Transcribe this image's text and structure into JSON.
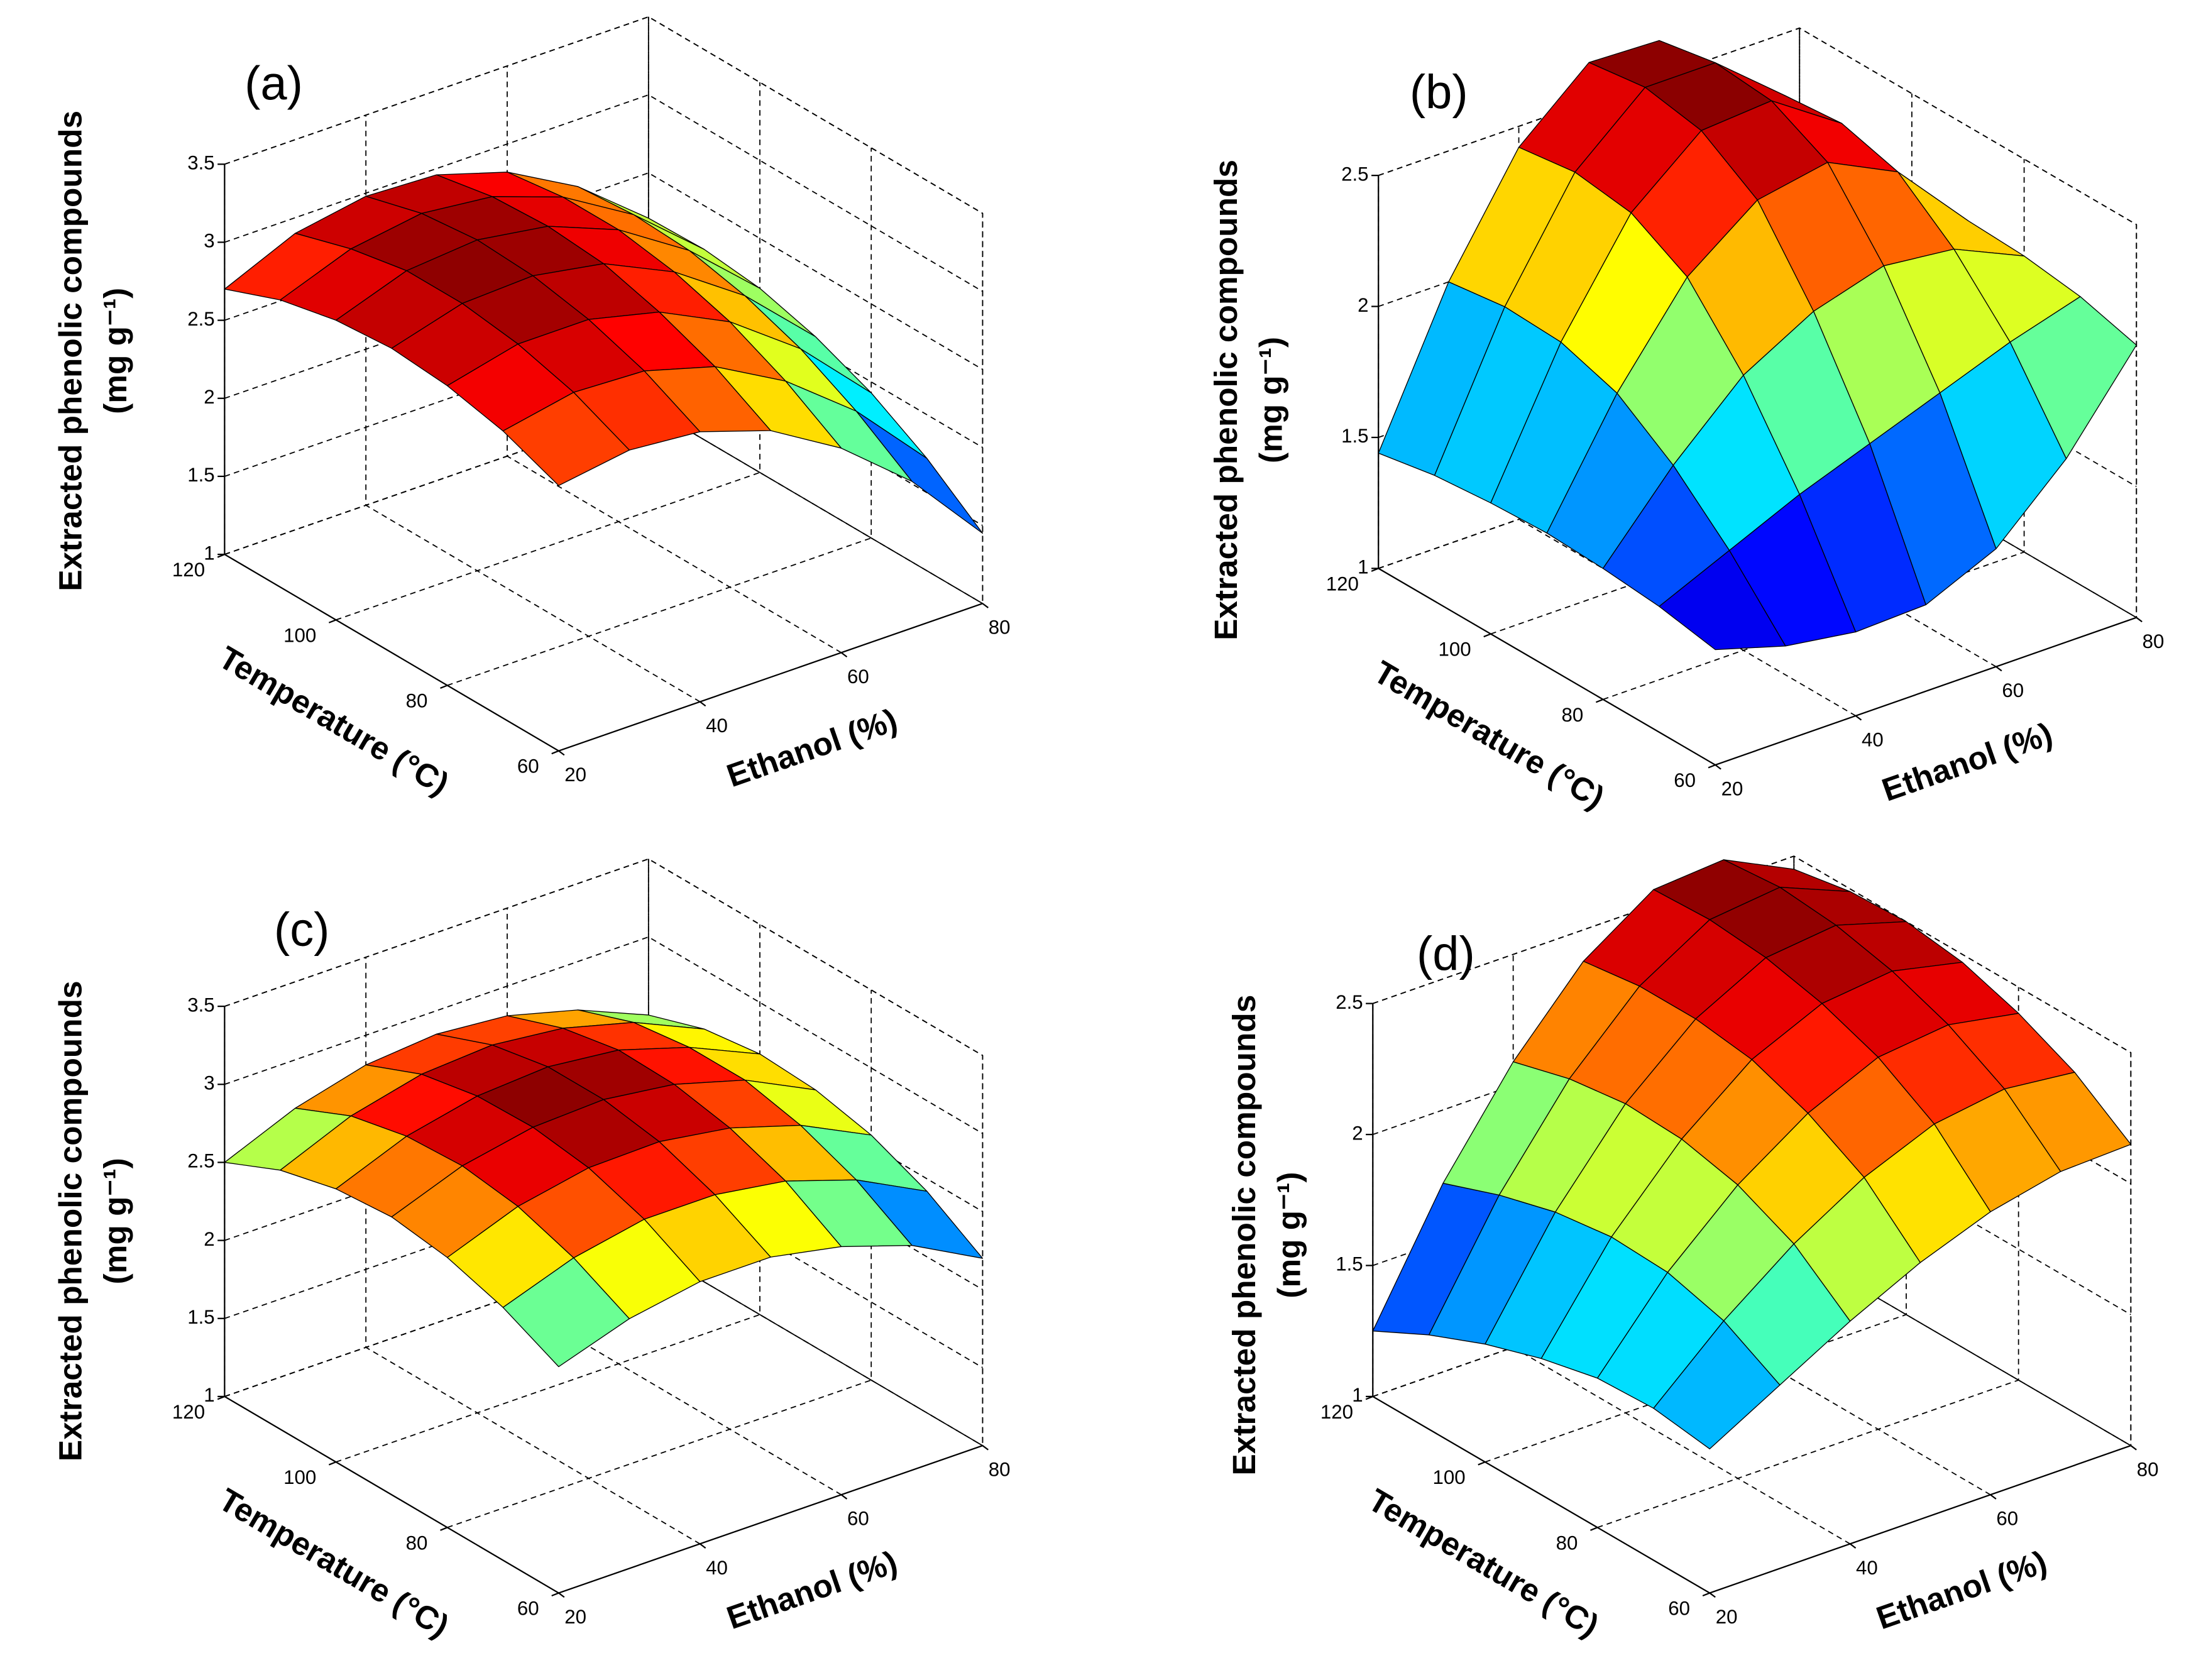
{
  "chart_data": [
    {
      "type": "surface",
      "title": "(a)",
      "x_label": "Ethanol (%)",
      "y_label": "Temperature (°C)",
      "z_label": "Extracted phenolic compounds",
      "z_label_unit": "(mg g⁻¹)",
      "x": [
        20,
        30,
        40,
        50,
        60,
        70,
        80
      ],
      "y": [
        60,
        70,
        80,
        90,
        100,
        110,
        120
      ],
      "z": [
        [
          2.7,
          2.77,
          2.73,
          2.58,
          2.31,
          1.94,
          1.45
        ],
        [
          2.84,
          2.93,
          2.91,
          2.78,
          2.53,
          2.18,
          1.72
        ],
        [
          2.92,
          3.03,
          3.03,
          2.92,
          2.7,
          2.37,
          1.93
        ],
        [
          2.95,
          3.08,
          3.1,
          3.02,
          2.81,
          2.5,
          2.08
        ],
        [
          2.92,
          3.08,
          3.12,
          3.05,
          2.87,
          2.58,
          2.18
        ],
        [
          2.84,
          3.01,
          3.08,
          3.03,
          2.87,
          2.6,
          2.22
        ],
        [
          2.7,
          2.9,
          2.98,
          2.96,
          2.82,
          2.57,
          2.21
        ]
      ],
      "xlim": [
        20,
        80
      ],
      "xticks": [
        20,
        40,
        60,
        80
      ],
      "ylim": [
        60,
        120
      ],
      "yticks": [
        60,
        80,
        100,
        120
      ],
      "zlim": [
        1,
        3.5
      ],
      "zticks": [
        1,
        1.5,
        2,
        2.5,
        3,
        3.5
      ],
      "colormap": "jet",
      "grid": true
    },
    {
      "type": "surface",
      "title": "(b)",
      "x_label": "Ethanol (%)",
      "y_label": "Temperature (°C)",
      "z_label": "Extracted phenolic compounds",
      "z_label_unit": "(mg g⁻¹)",
      "x": [
        20,
        30,
        40,
        50,
        60,
        70,
        80
      ],
      "y": [
        60,
        70,
        80,
        90,
        100,
        110,
        120
      ],
      "z": [
        [
          1.44,
          1.36,
          1.32,
          1.33,
          1.45,
          1.7,
          2.04
        ],
        [
          1.48,
          1.6,
          1.72,
          1.82,
          1.92,
          2.02,
          2.1
        ],
        [
          1.5,
          1.8,
          2.05,
          2.2,
          2.28,
          2.25,
          2.13
        ],
        [
          1.51,
          1.95,
          2.3,
          2.5,
          2.55,
          2.42,
          2.14
        ],
        [
          1.5,
          2.02,
          2.42,
          2.64,
          2.66,
          2.48,
          2.13
        ],
        [
          1.48,
          2.03,
          2.45,
          2.68,
          2.68,
          2.46,
          2.1
        ],
        [
          1.44,
          2.0,
          2.42,
          2.65,
          2.64,
          2.4,
          2.05
        ]
      ],
      "xlim": [
        20,
        80
      ],
      "xticks": [
        20,
        40,
        60,
        80
      ],
      "ylim": [
        60,
        120
      ],
      "yticks": [
        60,
        80,
        100,
        120
      ],
      "zlim": [
        1,
        2.5
      ],
      "zticks": [
        1,
        1.5,
        2,
        2.5
      ],
      "colormap": "jet",
      "grid": true
    },
    {
      "type": "surface",
      "title": "(c)",
      "x_label": "Ethanol (%)",
      "y_label": "Temperature (°C)",
      "z_label": "Extracted phenolic compounds",
      "z_label_unit": "(mg g⁻¹)",
      "x": [
        20,
        30,
        40,
        50,
        60,
        70,
        80
      ],
      "y": [
        60,
        70,
        80,
        90,
        100,
        110,
        120
      ],
      "z": [
        [
          2.45,
          2.6,
          2.68,
          2.68,
          2.59,
          2.44,
          2.2
        ],
        [
          2.62,
          2.78,
          2.87,
          2.87,
          2.8,
          2.65,
          2.42
        ],
        [
          2.73,
          2.9,
          2.99,
          3.0,
          2.93,
          2.79,
          2.57
        ],
        [
          2.78,
          2.95,
          3.04,
          3.06,
          3.0,
          2.87,
          2.65
        ],
        [
          2.75,
          2.93,
          3.03,
          3.06,
          3.01,
          2.87,
          2.67
        ],
        [
          2.66,
          2.85,
          2.96,
          2.99,
          2.94,
          2.82,
          2.62
        ],
        [
          2.5,
          2.69,
          2.81,
          2.85,
          2.81,
          2.69,
          2.5
        ]
      ],
      "xlim": [
        20,
        80
      ],
      "xticks": [
        20,
        40,
        60,
        80
      ],
      "ylim": [
        60,
        120
      ],
      "yticks": [
        60,
        80,
        100,
        120
      ],
      "zlim": [
        1,
        3.5
      ],
      "zticks": [
        1,
        1.5,
        2,
        2.5,
        3,
        3.5
      ],
      "colormap": "jet",
      "grid": true
    },
    {
      "type": "surface",
      "title": "(d)",
      "x_label": "Ethanol (%)",
      "y_label": "Temperature (°C)",
      "z_label": "Extracted phenolic compounds",
      "z_label_unit": "(mg g⁻¹)",
      "x": [
        20,
        30,
        40,
        50,
        60,
        70,
        80
      ],
      "y": [
        60,
        70,
        80,
        90,
        100,
        110,
        120
      ],
      "z": [
        [
          1.55,
          1.7,
          1.85,
          1.98,
          2.08,
          2.14,
          2.15
        ],
        [
          1.58,
          1.82,
          2.02,
          2.18,
          2.29,
          2.33,
          2.3
        ],
        [
          1.57,
          1.88,
          2.12,
          2.3,
          2.42,
          2.45,
          2.4
        ],
        [
          1.52,
          1.89,
          2.17,
          2.38,
          2.5,
          2.53,
          2.47
        ],
        [
          1.45,
          1.86,
          2.18,
          2.41,
          2.55,
          2.58,
          2.5
        ],
        [
          1.36,
          1.8,
          2.15,
          2.41,
          2.57,
          2.6,
          2.49
        ],
        [
          1.25,
          1.72,
          2.09,
          2.38,
          2.56,
          2.58,
          2.45
        ]
      ],
      "xlim": [
        20,
        80
      ],
      "xticks": [
        20,
        40,
        60,
        80
      ],
      "ylim": [
        60,
        120
      ],
      "yticks": [
        60,
        80,
        100,
        120
      ],
      "zlim": [
        1,
        2.5
      ],
      "zticks": [
        1,
        1.5,
        2,
        2.5
      ],
      "colormap": "jet",
      "grid": true
    }
  ]
}
